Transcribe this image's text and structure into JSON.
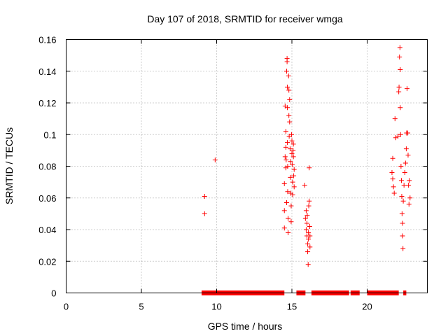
{
  "chart_data": {
    "type": "scatter",
    "title": "Day 107 of 2018, SRMTID for receiver wmga",
    "xlabel": "GPS time / hours",
    "ylabel": "SRMTID / TECUs",
    "xlim": [
      0,
      24
    ],
    "ylim": [
      0,
      0.16
    ],
    "x_ticks": [
      0,
      5,
      10,
      15,
      20
    ],
    "x_tick_labels": [
      "0",
      "5",
      "10",
      "15",
      "20"
    ],
    "y_ticks": [
      0,
      0.02,
      0.04,
      0.06,
      0.08,
      0.1,
      0.12,
      0.14,
      0.16
    ],
    "y_tick_labels": [
      "0",
      "0.02",
      "0.04",
      "0.06",
      "0.08",
      "0.1",
      "0.12",
      "0.14",
      "0.16"
    ],
    "grid": true,
    "marker": "+",
    "color": "#ff0000",
    "series": [
      {
        "name": "SRMTID",
        "points": [
          [
            9.2,
            0.061
          ],
          [
            9.2,
            0.05
          ],
          [
            9.9,
            0.084
          ],
          [
            14.5,
            0.052
          ],
          [
            14.5,
            0.041
          ],
          [
            14.5,
            0.069
          ],
          [
            14.55,
            0.086
          ],
          [
            14.55,
            0.118
          ],
          [
            14.6,
            0.092
          ],
          [
            14.6,
            0.079
          ],
          [
            14.6,
            0.102
          ],
          [
            14.62,
            0.084
          ],
          [
            14.65,
            0.057
          ],
          [
            14.65,
            0.14
          ],
          [
            14.68,
            0.148
          ],
          [
            14.68,
            0.146
          ],
          [
            14.7,
            0.13
          ],
          [
            14.7,
            0.117
          ],
          [
            14.7,
            0.095
          ],
          [
            14.72,
            0.08
          ],
          [
            14.72,
            0.064
          ],
          [
            14.75,
            0.047
          ],
          [
            14.75,
            0.038
          ],
          [
            14.78,
            0.137
          ],
          [
            14.8,
            0.128
          ],
          [
            14.8,
            0.112
          ],
          [
            14.82,
            0.099
          ],
          [
            14.85,
            0.122
          ],
          [
            14.85,
            0.108
          ],
          [
            14.88,
            0.091
          ],
          [
            14.9,
            0.083
          ],
          [
            14.9,
            0.073
          ],
          [
            14.92,
            0.063
          ],
          [
            14.95,
            0.055
          ],
          [
            14.95,
            0.045
          ],
          [
            14.98,
            0.1
          ],
          [
            15.0,
            0.096
          ],
          [
            15.0,
            0.088
          ],
          [
            15.02,
            0.081
          ],
          [
            15.05,
            0.07
          ],
          [
            15.05,
            0.062
          ],
          [
            15.08,
            0.09
          ],
          [
            15.1,
            0.094
          ],
          [
            15.1,
            0.086
          ],
          [
            15.12,
            0.074
          ],
          [
            15.15,
            0.067
          ],
          [
            15.15,
            0.078
          ],
          [
            15.85,
            0.068
          ],
          [
            15.9,
            0.047
          ],
          [
            15.95,
            0.052
          ],
          [
            15.95,
            0.04
          ],
          [
            16.0,
            0.036
          ],
          [
            16.0,
            0.044
          ],
          [
            16.02,
            0.049
          ],
          [
            16.05,
            0.031
          ],
          [
            16.05,
            0.026
          ],
          [
            16.08,
            0.018
          ],
          [
            16.1,
            0.038
          ],
          [
            16.1,
            0.034
          ],
          [
            16.12,
            0.055
          ],
          [
            16.15,
            0.079
          ],
          [
            16.15,
            0.058
          ],
          [
            16.18,
            0.042
          ],
          [
            16.2,
            0.036
          ],
          [
            16.2,
            0.029
          ],
          [
            21.65,
            0.076
          ],
          [
            21.7,
            0.072
          ],
          [
            21.7,
            0.085
          ],
          [
            21.75,
            0.067
          ],
          [
            21.8,
            0.063
          ],
          [
            21.85,
            0.11
          ],
          [
            21.9,
            0.098
          ],
          [
            22.05,
            0.099
          ],
          [
            22.1,
            0.127
          ],
          [
            22.12,
            0.13
          ],
          [
            22.15,
            0.149
          ],
          [
            22.18,
            0.155
          ],
          [
            22.2,
            0.141
          ],
          [
            22.2,
            0.117
          ],
          [
            22.22,
            0.1
          ],
          [
            22.25,
            0.08
          ],
          [
            22.28,
            0.071
          ],
          [
            22.3,
            0.061
          ],
          [
            22.32,
            0.05
          ],
          [
            22.35,
            0.044
          ],
          [
            22.35,
            0.036
          ],
          [
            22.38,
            0.028
          ],
          [
            22.4,
            0.058
          ],
          [
            22.45,
            0.068
          ],
          [
            22.5,
            0.076
          ],
          [
            22.55,
            0.082
          ],
          [
            22.6,
            0.091
          ],
          [
            22.62,
            0.101
          ],
          [
            22.65,
            0.129
          ],
          [
            22.7,
            0.101
          ],
          [
            22.72,
            0.087
          ],
          [
            22.75,
            0.068
          ],
          [
            22.78,
            0.056
          ],
          [
            22.8,
            0.071
          ],
          [
            22.85,
            0.06
          ]
        ],
        "zero_segments": [
          [
            9.0,
            14.5
          ],
          [
            15.3,
            15.9
          ],
          [
            16.3,
            18.8
          ],
          [
            18.9,
            19.5
          ],
          [
            20.0,
            22.1
          ],
          [
            22.4,
            22.6
          ]
        ]
      }
    ]
  }
}
